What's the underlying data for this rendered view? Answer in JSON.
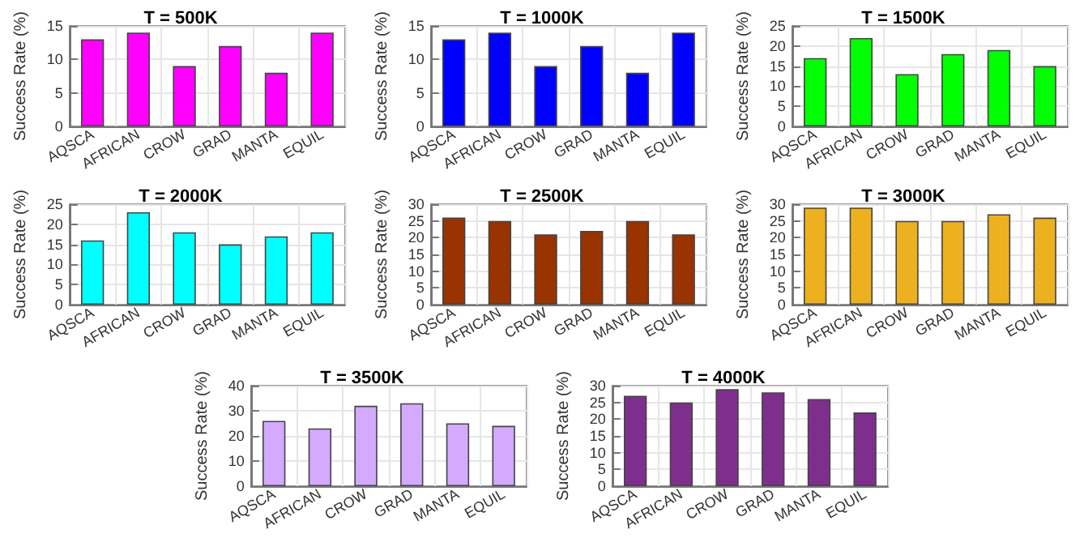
{
  "chart_data": [
    {
      "type": "bar",
      "title": "T = 500K",
      "ylabel": "Success Rate (%)",
      "categories": [
        "AQSCA",
        "AFRICAN",
        "CROW",
        "GRAD",
        "MANTA",
        "EQUIL"
      ],
      "values": [
        13,
        14,
        9,
        12,
        8,
        14
      ],
      "color": "#ff00ff",
      "ylim": [
        0,
        15
      ],
      "yticks": [
        0,
        5,
        10,
        15
      ],
      "grid": true
    },
    {
      "type": "bar",
      "title": "T = 1000K",
      "ylabel": "Success Rate (%)",
      "categories": [
        "AQSCA",
        "AFRICAN",
        "CROW",
        "GRAD",
        "MANTA",
        "EQUIL"
      ],
      "values": [
        13,
        14,
        9,
        12,
        8,
        14
      ],
      "color": "#0000ff",
      "ylim": [
        0,
        15
      ],
      "yticks": [
        0,
        5,
        10,
        15
      ],
      "grid": true
    },
    {
      "type": "bar",
      "title": "T = 1500K",
      "ylabel": "Success Rate (%)",
      "categories": [
        "AQSCA",
        "AFRICAN",
        "CROW",
        "GRAD",
        "MANTA",
        "EQUIL"
      ],
      "values": [
        17,
        22,
        13,
        18,
        19,
        15
      ],
      "color": "#00ff00",
      "ylim": [
        0,
        25
      ],
      "yticks": [
        0,
        5,
        10,
        15,
        20,
        25
      ],
      "grid": true
    },
    {
      "type": "bar",
      "title": "T = 2000K",
      "ylabel": "Success Rate (%)",
      "categories": [
        "AQSCA",
        "AFRICAN",
        "CROW",
        "GRAD",
        "MANTA",
        "EQUIL"
      ],
      "values": [
        16,
        23,
        18,
        15,
        17,
        18
      ],
      "color": "#00ffff",
      "ylim": [
        0,
        25
      ],
      "yticks": [
        0,
        5,
        10,
        15,
        20,
        25
      ],
      "grid": true
    },
    {
      "type": "bar",
      "title": "T = 2500K",
      "ylabel": "Success Rate (%)",
      "categories": [
        "AQSCA",
        "AFRICAN",
        "CROW",
        "GRAD",
        "MANTA",
        "EQUIL"
      ],
      "values": [
        26,
        25,
        21,
        22,
        25,
        21
      ],
      "color": "#993300",
      "ylim": [
        0,
        30
      ],
      "yticks": [
        0,
        5,
        10,
        15,
        20,
        25,
        30
      ],
      "grid": true
    },
    {
      "type": "bar",
      "title": "T = 3000K",
      "ylabel": "Success Rate (%)",
      "categories": [
        "AQSCA",
        "AFRICAN",
        "CROW",
        "GRAD",
        "MANTA",
        "EQUIL"
      ],
      "values": [
        29,
        29,
        25,
        25,
        27,
        26
      ],
      "color": "#edb120",
      "ylim": [
        0,
        30
      ],
      "yticks": [
        0,
        5,
        10,
        15,
        20,
        25,
        30
      ],
      "grid": true
    },
    {
      "type": "bar",
      "title": "T = 3500K",
      "ylabel": "Success Rate (%)",
      "categories": [
        "AQSCA",
        "AFRICAN",
        "CROW",
        "GRAD",
        "MANTA",
        "EQUIL"
      ],
      "values": [
        26,
        23,
        32,
        33,
        25,
        24
      ],
      "color": "#d4aaff",
      "ylim": [
        0,
        40
      ],
      "yticks": [
        0,
        10,
        20,
        30,
        40
      ],
      "grid": true
    },
    {
      "type": "bar",
      "title": "T = 4000K",
      "ylabel": "Success Rate (%)",
      "categories": [
        "AQSCA",
        "AFRICAN",
        "CROW",
        "GRAD",
        "MANTA",
        "EQUIL"
      ],
      "values": [
        27,
        25,
        29,
        28,
        26,
        22
      ],
      "color": "#7e2f8e",
      "ylim": [
        0,
        30
      ],
      "yticks": [
        0,
        5,
        10,
        15,
        20,
        25,
        30
      ],
      "grid": true
    }
  ]
}
